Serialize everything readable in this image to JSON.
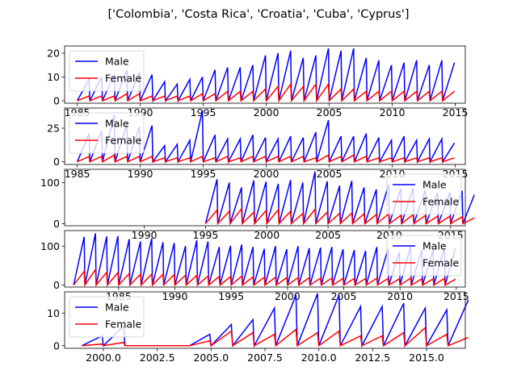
{
  "figure": {
    "title": "['Colombia', 'Costa Rica', 'Croatia', 'Cuba', 'Cyprus']"
  },
  "colors": {
    "male": "#0000ff",
    "female": "#ff0000"
  },
  "chart_data": [
    {
      "type": "line",
      "country": "Colombia",
      "xlim": [
        1984,
        2015.8
      ],
      "ylim": [
        -1,
        23
      ],
      "xticks": [
        1985,
        1990,
        1995,
        2000,
        2005,
        2010,
        2015
      ],
      "xtick_labels": [
        "1985",
        "1990",
        "1995",
        "2000",
        "2005",
        "2010",
        "2015"
      ],
      "yticks": [
        0,
        10,
        20
      ],
      "ytick_labels": [
        "0",
        "10",
        "20"
      ],
      "legend": "upper left",
      "x_start": 1985,
      "x_step": 1,
      "n_years": 30,
      "series": [
        {
          "name": "Male",
          "color": "#0000ff",
          "peaks": [
            9,
            10,
            11,
            13,
            12,
            11,
            8,
            7,
            9,
            10,
            13,
            14,
            14,
            15,
            19,
            20,
            21,
            18,
            19,
            22,
            21,
            22,
            18,
            17,
            15,
            16,
            17,
            15,
            17,
            16
          ]
        },
        {
          "name": "Female",
          "color": "#ff0000",
          "peaks": [
            2,
            2,
            2,
            3,
            3,
            2,
            2,
            2,
            2,
            3,
            3,
            4,
            4,
            4,
            5,
            6,
            7,
            6,
            7,
            7,
            5,
            5,
            4,
            4,
            4,
            4,
            4,
            4,
            4,
            4
          ]
        }
      ]
    },
    {
      "type": "line",
      "country": "Costa Rica",
      "xlim": [
        1984,
        2015.8
      ],
      "ylim": [
        -2,
        40
      ],
      "xticks": [
        1985,
        1990,
        1995,
        2000,
        2005,
        2010,
        2015
      ],
      "xtick_labels": [
        "1985",
        "1990",
        "1995",
        "2000",
        "2005",
        "2010",
        "2015"
      ],
      "yticks": [
        0,
        25
      ],
      "ytick_labels": [
        "0",
        "25"
      ],
      "legend": "upper left",
      "x_start": 1985,
      "x_step": 1,
      "n_years": 30,
      "series": [
        {
          "name": "Male",
          "color": "#0000ff",
          "peaks": [
            21,
            23,
            35,
            28,
            26,
            27,
            12,
            13,
            16,
            38,
            20,
            17,
            17,
            20,
            18,
            17,
            19,
            18,
            22,
            31,
            19,
            19,
            21,
            18,
            16,
            19,
            16,
            17,
            17,
            14
          ]
        },
        {
          "name": "Female",
          "color": "#ff0000",
          "peaks": [
            4,
            4,
            5,
            4,
            4,
            4,
            3,
            3,
            3,
            4,
            3,
            4,
            3,
            4,
            4,
            4,
            4,
            4,
            3,
            5,
            4,
            5,
            4,
            3,
            3,
            3,
            3,
            3,
            3,
            3
          ]
        }
      ]
    },
    {
      "type": "line",
      "country": "Croatia",
      "xlim": [
        1983.5,
        2016.2
      ],
      "ylim": [
        -5,
        132
      ],
      "xticks": [
        1990,
        1995,
        2000,
        2005,
        2010,
        2015
      ],
      "xtick_labels": [
        "1990",
        "1995",
        "2000",
        "2005",
        "2010",
        "2015"
      ],
      "yticks": [
        0,
        100
      ],
      "ytick_labels": [
        "0",
        "100"
      ],
      "legend": "upper right",
      "x_start": 1995,
      "x_step": 1,
      "n_years": 22,
      "series": [
        {
          "name": "Male",
          "color": "#0000ff",
          "peaks": [
            108,
            100,
            88,
            105,
            102,
            97,
            106,
            100,
            127,
            103,
            92,
            104,
            88,
            83,
            95,
            85,
            87,
            82,
            76,
            76,
            80,
            70
          ]
        },
        {
          "name": "Female",
          "color": "#ff0000",
          "peaks": [
            33,
            30,
            36,
            28,
            32,
            34,
            30,
            25,
            35,
            28,
            25,
            26,
            24,
            22,
            24,
            20,
            22,
            20,
            18,
            18,
            17,
            14
          ]
        }
      ]
    },
    {
      "type": "line",
      "country": "Cuba",
      "xlim": [
        1980.2,
        2015.8
      ],
      "ylim": [
        -5,
        140
      ],
      "xticks": [
        1985,
        1990,
        1995,
        2000,
        2005,
        2010,
        2015
      ],
      "xtick_labels": [
        "1985",
        "1990",
        "1995",
        "2000",
        "2005",
        "2010",
        "2015"
      ],
      "yticks": [
        0,
        100
      ],
      "ytick_labels": [
        "0",
        "100"
      ],
      "legend": "upper right",
      "x_start": 1981,
      "x_step": 1,
      "n_years": 34,
      "series": [
        {
          "name": "Male",
          "color": "#0000ff",
          "peaks": [
            124,
            133,
            125,
            126,
            118,
            112,
            120,
            110,
            108,
            100,
            115,
            112,
            98,
            101,
            104,
            98,
            93,
            100,
            92,
            100,
            95,
            96,
            98,
            92,
            90,
            88,
            98,
            93,
            85,
            100,
            90,
            92,
            95,
            95
          ]
        },
        {
          "name": "Female",
          "color": "#ff0000",
          "peaks": [
            35,
            40,
            33,
            32,
            30,
            28,
            28,
            28,
            27,
            25,
            25,
            23,
            22,
            22,
            23,
            21,
            20,
            20,
            19,
            19,
            19,
            18,
            18,
            17,
            17,
            17,
            18,
            17,
            16,
            18,
            16,
            16,
            17,
            15
          ]
        }
      ]
    },
    {
      "type": "line",
      "country": "Cyprus",
      "xlim": [
        1998.2,
        2016.8
      ],
      "ylim": [
        -0.8,
        16.5
      ],
      "xticks": [
        2000,
        2002.5,
        2005,
        2007.5,
        2010,
        2012.5,
        2015
      ],
      "xtick_labels": [
        "2000.0",
        "2002.5",
        "2005.0",
        "2007.5",
        "2010.0",
        "2012.5",
        "2015.0"
      ],
      "yticks": [
        0,
        10
      ],
      "ytick_labels": [
        "0",
        "10"
      ],
      "legend": "upper left",
      "x_start": 1999,
      "x_step": 1,
      "n_years": 18,
      "series": [
        {
          "name": "Male",
          "color": "#0000ff",
          "peaks": [
            3,
            6,
            0,
            0,
            0,
            3.5,
            6.5,
            8,
            11.5,
            15.5,
            16,
            15.5,
            12,
            12,
            13,
            11.5,
            11,
            14
          ]
        },
        {
          "name": "Female",
          "color": "#ff0000",
          "peaks": [
            0.5,
            1,
            0,
            0,
            0,
            1.5,
            4.5,
            4,
            3.5,
            5,
            4,
            4.5,
            3,
            3,
            4,
            5.5,
            3.5,
            2.5
          ]
        }
      ]
    }
  ]
}
